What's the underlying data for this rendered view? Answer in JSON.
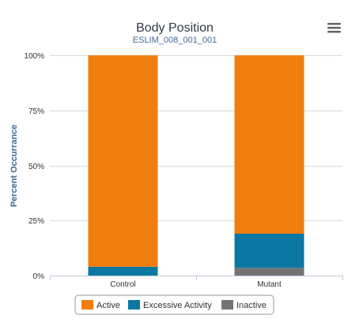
{
  "chart_data": {
    "type": "bar",
    "stacked": true,
    "title": "Body Position",
    "subtitle": "ESLIM_008_001_001",
    "xlabel": "",
    "ylabel": "Percent Occurrance",
    "categories": [
      "Control",
      "Mutant"
    ],
    "ylim": [
      0,
      100
    ],
    "yticks": [
      0,
      25,
      50,
      75,
      100
    ],
    "ytick_labels": [
      "0%",
      "25%",
      "50%",
      "75%",
      "100%"
    ],
    "grid": true,
    "legend_position": "bottom-center",
    "series": [
      {
        "name": "Inactive",
        "color": "#737373",
        "values": [
          0,
          3.5
        ]
      },
      {
        "name": "Excessive Activity",
        "color": "#0b78a3",
        "values": [
          4,
          15.5
        ]
      },
      {
        "name": "Active",
        "color": "#ef7e0e",
        "values": [
          96,
          81
        ]
      }
    ],
    "legend_order": [
      "Active",
      "Excessive Activity",
      "Inactive"
    ]
  },
  "menu": {
    "icon": "hamburger-menu-icon"
  }
}
